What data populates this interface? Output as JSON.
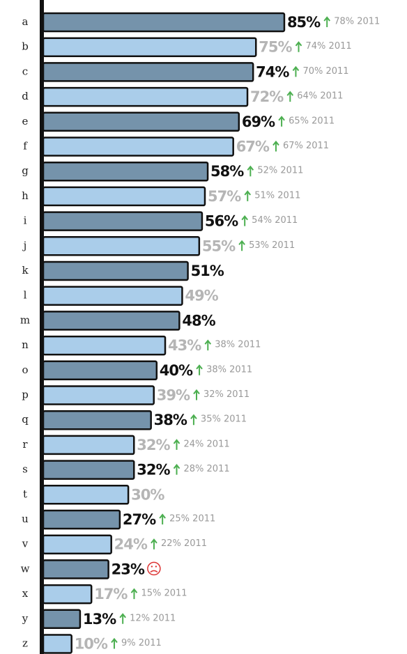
{
  "chart_data": {
    "type": "bar",
    "categories": [
      "a",
      "b",
      "c",
      "d",
      "e",
      "f",
      "g",
      "h",
      "i",
      "j",
      "k",
      "l",
      "m",
      "n",
      "o",
      "p",
      "q",
      "r",
      "s",
      "t",
      "u",
      "v",
      "w",
      "x",
      "y",
      "z"
    ],
    "values": [
      85,
      75,
      74,
      72,
      69,
      67,
      58,
      57,
      56,
      55,
      51,
      49,
      48,
      43,
      40,
      39,
      38,
      32,
      32,
      30,
      27,
      24,
      23,
      17,
      13,
      10
    ],
    "value_labels": [
      "85%",
      "75%",
      "74%",
      "72%",
      "69%",
      "67%",
      "58%",
      "57%",
      "56%",
      "55%",
      "51%",
      "49%",
      "48%",
      "43%",
      "40%",
      "39%",
      "38%",
      "32%",
      "32%",
      "30%",
      "27%",
      "24%",
      "23%",
      "17%",
      "13%",
      "10%"
    ],
    "comparison_labels": [
      "78% 2011",
      "74% 2011",
      "70% 2011",
      "64% 2011",
      "65% 2011",
      "67% 2011",
      "52% 2011",
      "51% 2011",
      "54% 2011",
      "53% 2011",
      null,
      null,
      null,
      "38% 2011",
      "38% 2011",
      "32% 2011",
      "35% 2011",
      "24% 2011",
      "28% 2011",
      null,
      "25% 2011",
      "22% 2011",
      null,
      "15% 2011",
      "12% 2011",
      "9% 2011"
    ],
    "colors": [
      "#7593ab",
      "#aacdea"
    ]
  }
}
